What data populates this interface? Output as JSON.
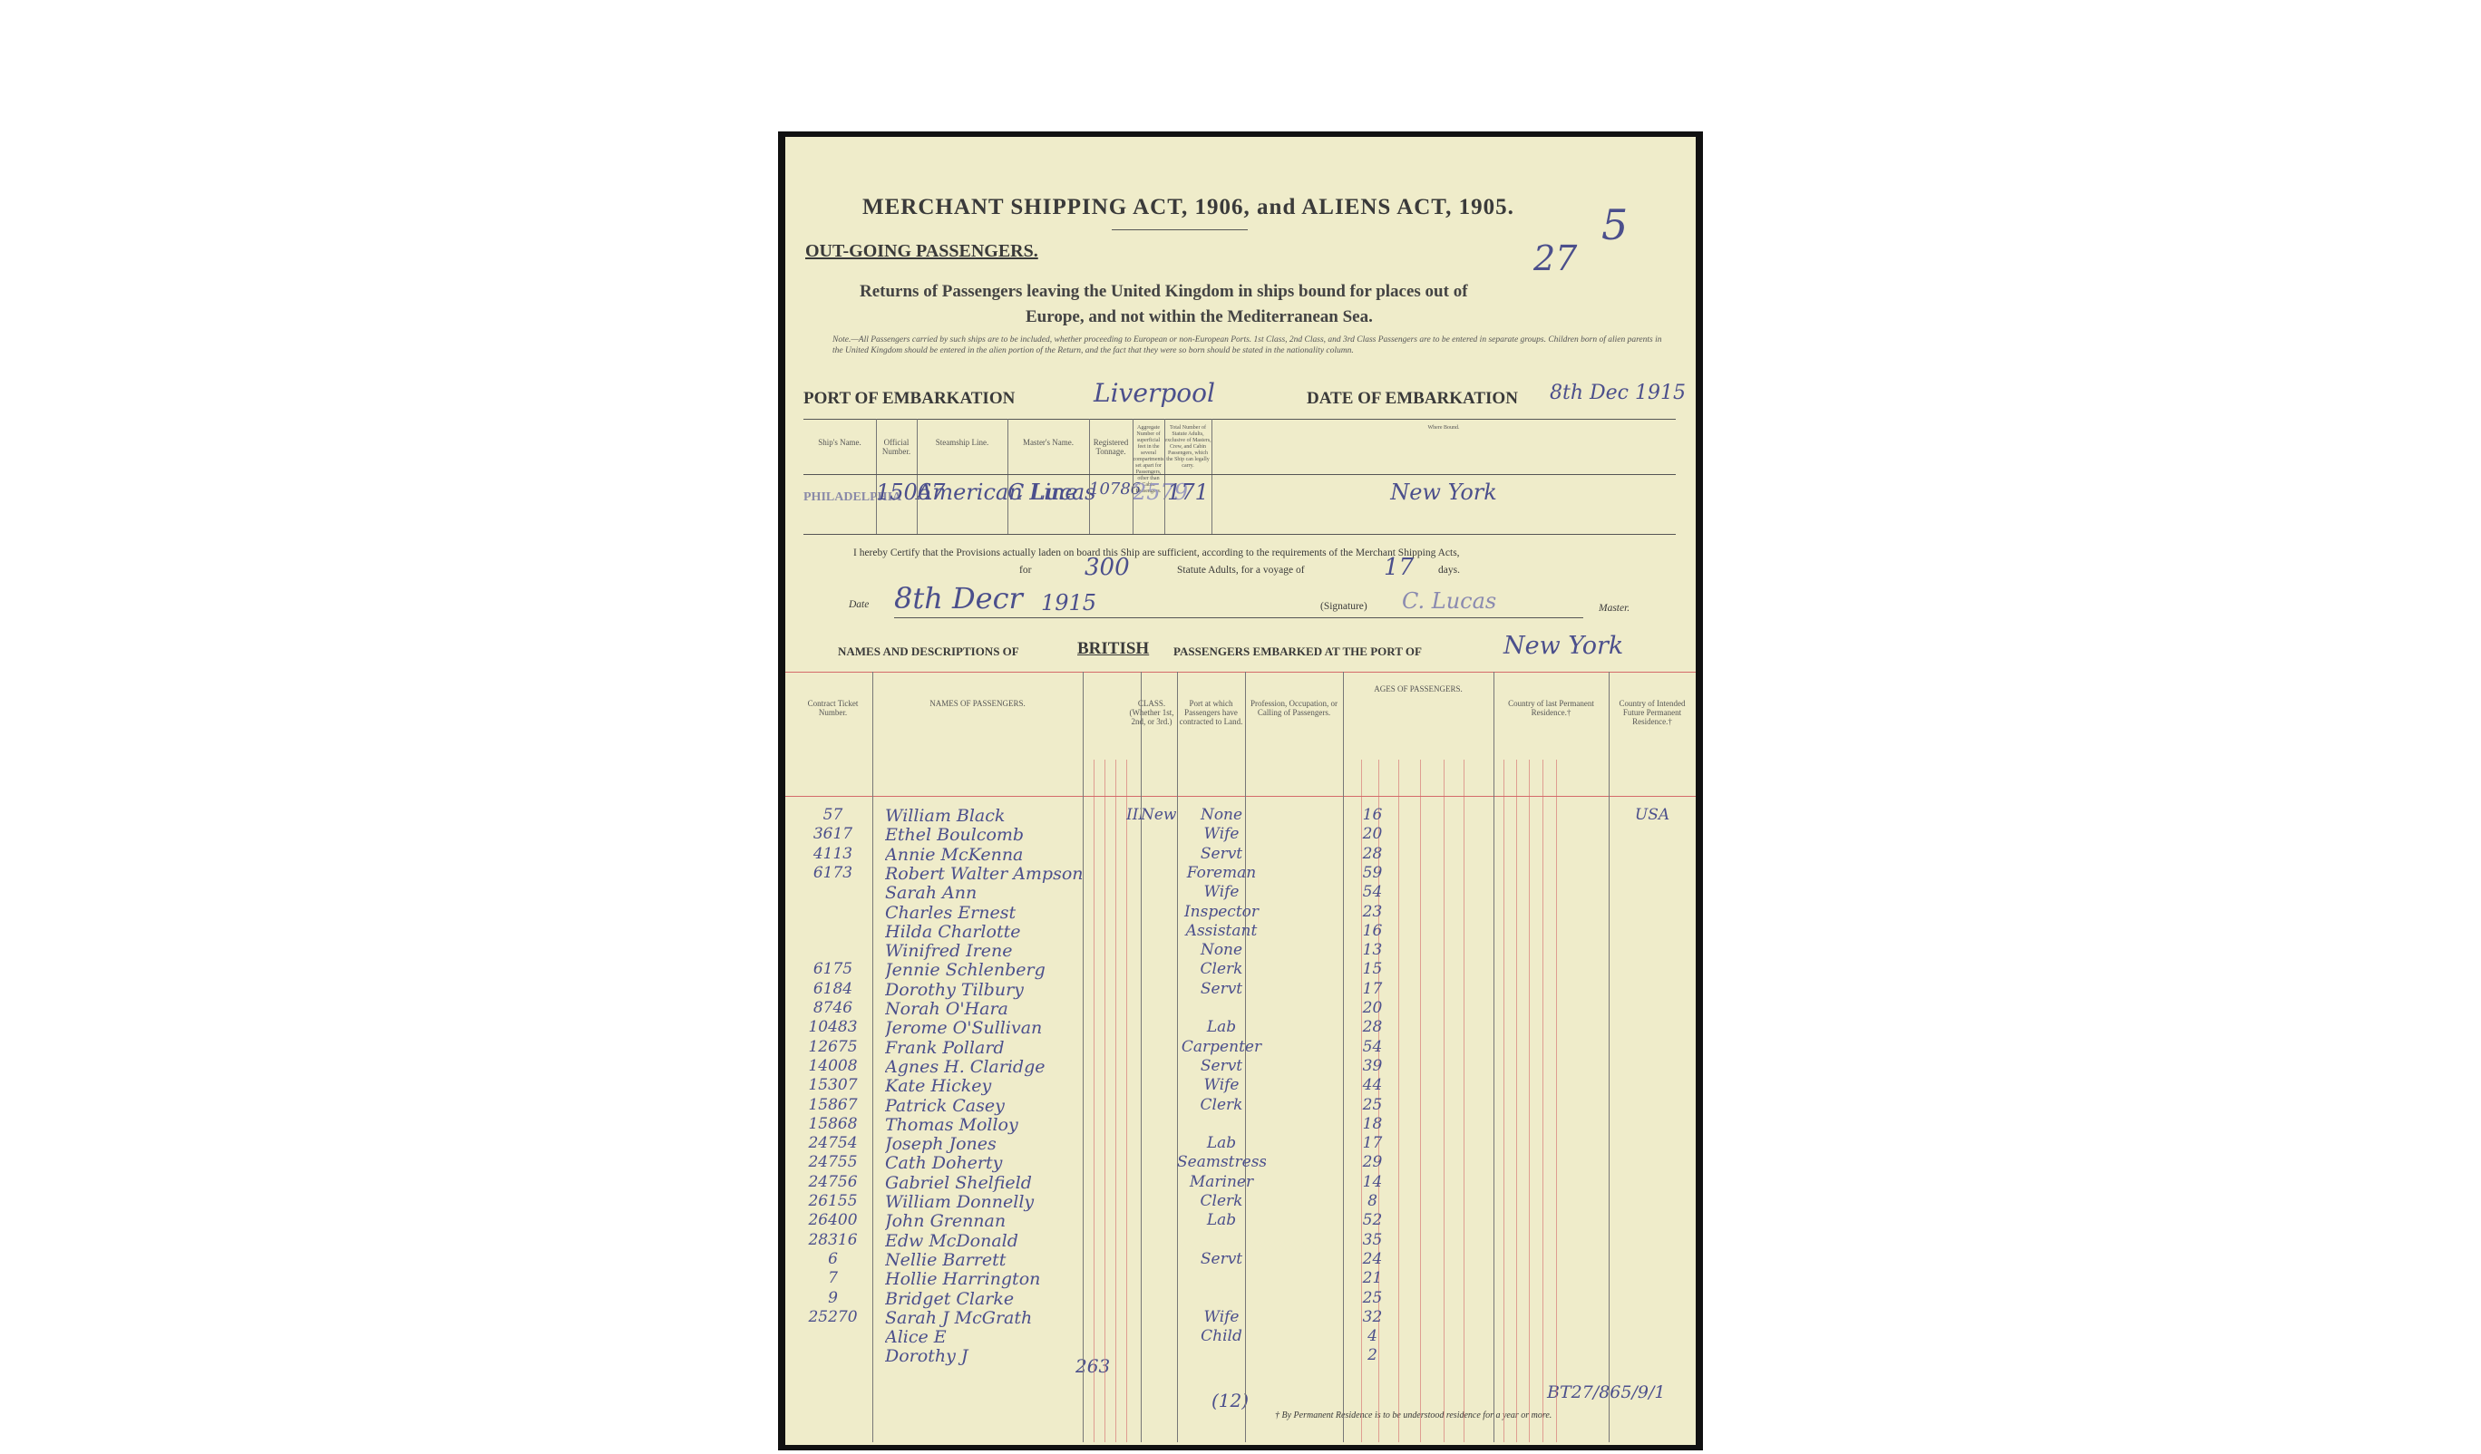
{
  "header": {
    "title": "MERCHANT SHIPPING ACT, 1906, and ALIENS ACT, 1905.",
    "reference_numbers": [
      "27",
      "5"
    ],
    "section": "OUT-GOING PASSENGERS.",
    "subtitle_line1": "Returns of Passengers leaving the United Kingdom in ships bound for places out of",
    "subtitle_line2": "Europe, and not within the Mediterranean Sea.",
    "note": "Note.—All Passengers carried by such ships are to be included, whether proceeding to European or non-European Ports. 1st Class, 2nd Class, and 3rd Class Passengers are to be entered in separate groups. Children born of alien parents in the United Kingdom should be entered in the alien portion of the Return, and the fact that they were so born should be stated in the nationality column."
  },
  "embarkation": {
    "port_label": "PORT OF EMBARKATION",
    "port": "Liverpool",
    "date_label": "DATE OF EMBARKATION",
    "date": "8th Dec 1915"
  },
  "ship_table": {
    "headers": [
      "Ship's Name.",
      "Official Number.",
      "Steamship Line.",
      "Master's Name.",
      "Registered Tonnage.",
      "Aggregate Number of superficial feet in the several compartments set apart for Passengers, other than Cabin Passengers.",
      "Total Number of Statute Adults, exclusive of Masters, Crew, and Cabin Passengers, which the Ship can legally carry.",
      "Where Bound."
    ],
    "values": [
      "PHILADELPHIA",
      "15067",
      "American Line",
      "C Lucas",
      "10786",
      "2579",
      "171",
      "New York"
    ]
  },
  "certificate": {
    "text": "I hereby Certify that the Provisions actually laden on board this Ship are sufficient, according to the requirements of the Merchant Shipping Acts,",
    "for_label": "for",
    "adults": "300",
    "adults_label": "Statute Adults, for a voyage of",
    "days": "17",
    "days_label": "days.",
    "date_label": "Date",
    "date": "8th Decr",
    "year": "1915",
    "signature_label": "(Signature)",
    "signature": "C. Lucas",
    "master_label": "Master."
  },
  "passengers_heading": {
    "prefix": "NAMES AND DESCRIPTIONS OF",
    "nationality": "BRITISH",
    "middle": "PASSENGERS EMBARKED AT THE PORT OF",
    "port": "New York"
  },
  "passenger_table": {
    "headers": [
      "Contract Ticket Number.",
      "NAMES OF PASSENGERS.",
      "CLASS. (Whether 1st, 2nd, or 3rd.)",
      "Port at which Passengers have contracted to Land.",
      "Profession, Occupation, or Calling of Passengers.",
      "AGES OF PASSENGERS.",
      "Country of last Permanent Residence.†",
      "Country of Intended Future Permanent Residence.†"
    ],
    "rows": [
      {
        "ticket": "57",
        "name": "William Black",
        "class": "III",
        "port": "New York",
        "occupation": "None",
        "age": "16",
        "intended": "USA"
      },
      {
        "ticket": "3617",
        "name": "Ethel Boulcomb",
        "occupation": "Wife",
        "age": "20"
      },
      {
        "ticket": "4113",
        "name": "Annie McKenna",
        "occupation": "Servt",
        "age": "28"
      },
      {
        "ticket": "6173",
        "name": "Robert Walter Ampson",
        "occupation": "Foreman",
        "age": "59"
      },
      {
        "name": "Sarah Ann",
        "occupation": "Wife",
        "age": "54"
      },
      {
        "name": "Charles Ernest",
        "occupation": "Inspector",
        "age": "23"
      },
      {
        "name": "Hilda Charlotte",
        "occupation": "Assistant",
        "age": "16"
      },
      {
        "name": "Winifred Irene",
        "occupation": "None",
        "age": "13"
      },
      {
        "ticket": "6175",
        "name": "Jennie Schlenberg",
        "occupation": "Clerk",
        "age": "15"
      },
      {
        "ticket": "6184",
        "name": "Dorothy Tilbury",
        "occupation": "Servt",
        "age": "17"
      },
      {
        "ticket": "8746",
        "name": "Norah O'Hara",
        "age": "20"
      },
      {
        "ticket": "10483",
        "name": "Jerome O'Sullivan",
        "occupation": "Lab",
        "age": "28"
      },
      {
        "ticket": "12675",
        "name": "Frank Pollard",
        "occupation": "Carpenter",
        "age": "54"
      },
      {
        "ticket": "14008",
        "name": "Agnes H. Claridge",
        "occupation": "Servt",
        "age": "39"
      },
      {
        "ticket": "15307",
        "name": "Kate Hickey",
        "occupation": "Wife",
        "age": "44"
      },
      {
        "ticket": "15867",
        "name": "Patrick Casey",
        "occupation": "Clerk",
        "age": "25"
      },
      {
        "ticket": "15868",
        "name": "Thomas Molloy",
        "age": "18"
      },
      {
        "ticket": "24754",
        "name": "Joseph Jones",
        "occupation": "Lab",
        "age": "17"
      },
      {
        "ticket": "24755",
        "name": "Cath Doherty",
        "occupation": "Seamstress",
        "age": "29"
      },
      {
        "ticket": "24756",
        "name": "Gabriel Shelfield",
        "occupation": "Mariner",
        "age": "14"
      },
      {
        "ticket": "26155",
        "name": "William Donnelly",
        "occupation": "Clerk",
        "age": "8"
      },
      {
        "ticket": "26400",
        "name": "John Grennan",
        "occupation": "Lab",
        "age": "52"
      },
      {
        "ticket": "28316",
        "name": "Edw McDonald",
        "age": "35"
      },
      {
        "ticket": "6",
        "name": "Nellie Barrett",
        "occupation": "Servt",
        "age": "24"
      },
      {
        "ticket": "7",
        "name": "Hollie Harrington",
        "age": "21"
      },
      {
        "ticket": "9",
        "name": "Bridget Clarke",
        "age": "25"
      },
      {
        "ticket": "25270",
        "name": "Sarah J McGrath",
        "occupation": "Wife",
        "age": "32"
      },
      {
        "name": "Alice E",
        "occupation": "Child",
        "age": "4"
      },
      {
        "name": "Dorothy J",
        "age": "2"
      }
    ]
  },
  "footer": {
    "total": "263",
    "page_number": "(12)",
    "reference": "BT27/865/9/1",
    "footnote": "† By Permanent Residence is to be understood residence for a year or more."
  }
}
